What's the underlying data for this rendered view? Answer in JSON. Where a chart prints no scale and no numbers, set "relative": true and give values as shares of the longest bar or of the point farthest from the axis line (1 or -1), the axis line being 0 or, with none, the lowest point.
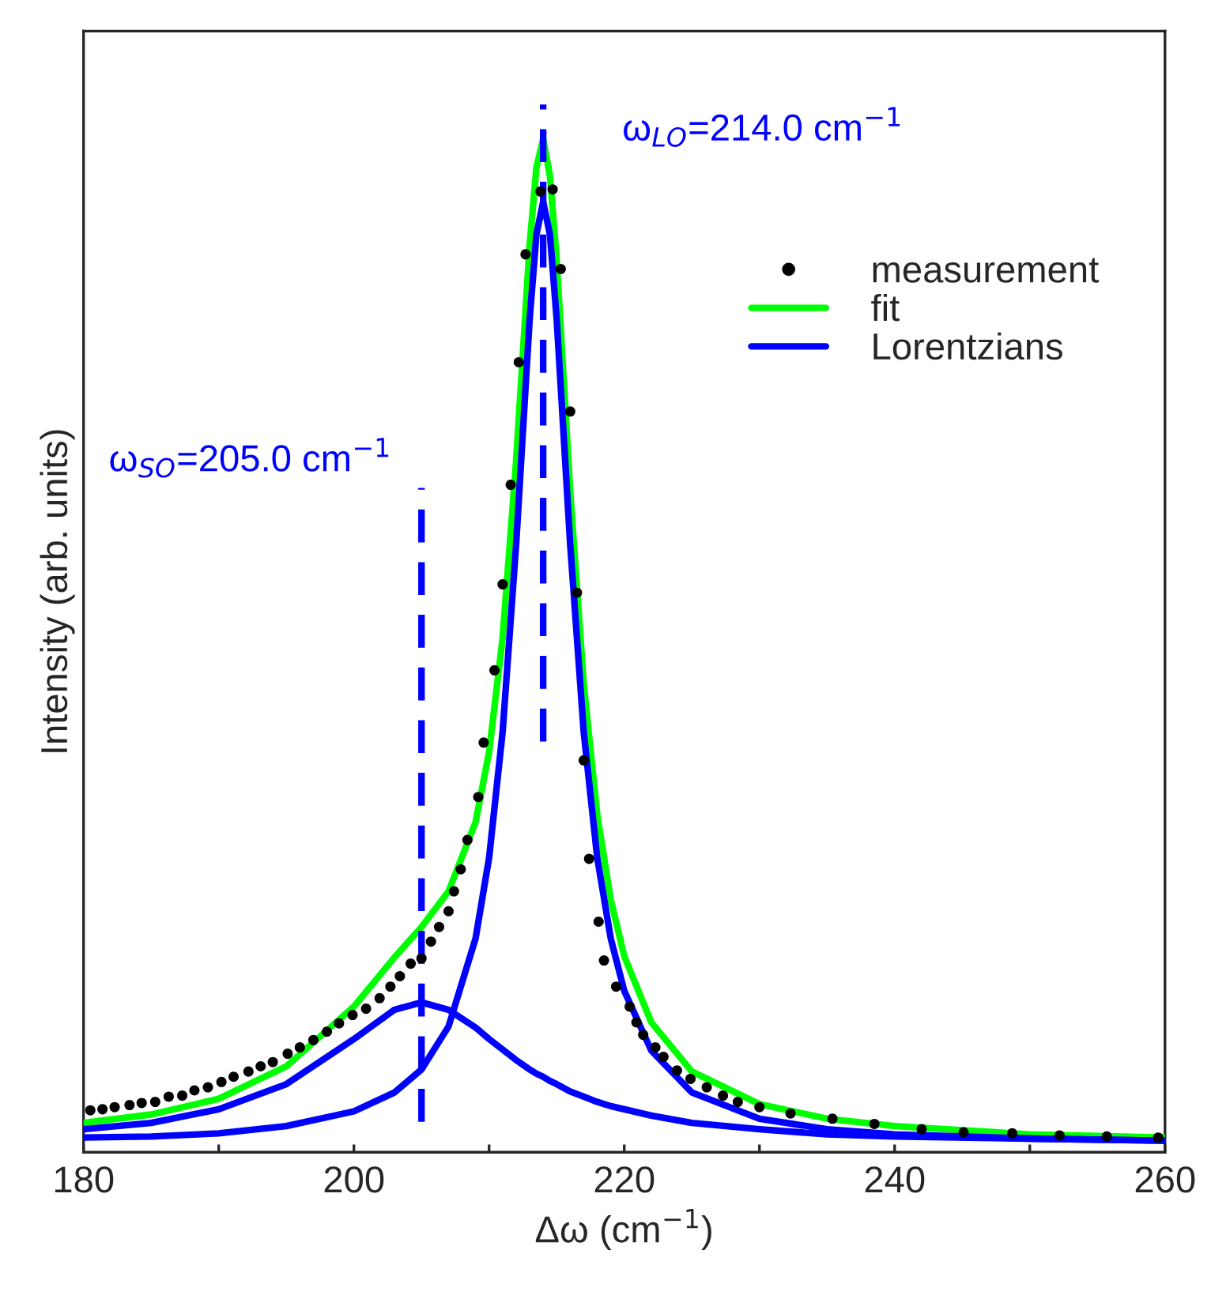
{
  "chart_data": {
    "type": "line",
    "relative": true,
    "xlabel": "Δω (cm$^{−1}$)",
    "ylabel": "Intensity (arb. units)",
    "xlim": [
      180,
      260
    ],
    "xticks": [
      180,
      {
        "value": 190,
        "label": null
      },
      200,
      {
        "value": 210,
        "label": null
      },
      220,
      {
        "value": 230,
        "label": null
      },
      240,
      {
        "value": 250,
        "label": null
      },
      260
    ],
    "legend": "top right",
    "grid": false,
    "series": [
      {
        "name": "measurement",
        "type": "scatter",
        "marker": "circle",
        "color": "#000000",
        "x": [
          180.5,
          181.4,
          182.3,
          183.4,
          184.3,
          185.3,
          186.3,
          187.3,
          188.2,
          189.2,
          190.2,
          191.1,
          192.2,
          193.1,
          194.0,
          195.1,
          196.0,
          197.0,
          198.0,
          198.9,
          199.9,
          200.9,
          201.9,
          202.7,
          203.4,
          204.2,
          205.0,
          205.7,
          206.3,
          207.0,
          207.4,
          207.9,
          208.4,
          209.2,
          209.6,
          210.4,
          211.0,
          211.6,
          212.2,
          212.7,
          213.8,
          214.7,
          215.3,
          216.0,
          216.5,
          217.0,
          217.4,
          218.1,
          218.5,
          219.4,
          220.4,
          220.9,
          221.4,
          222.3,
          222.9,
          223.9,
          224.9,
          226.1,
          227.3,
          228.4,
          230.0,
          232.3,
          235.4,
          238.5,
          242.0,
          245.1,
          248.7,
          252.2,
          255.7,
          259.5
        ],
        "values": [
          0.04,
          0.041,
          0.043,
          0.045,
          0.047,
          0.048,
          0.053,
          0.054,
          0.059,
          0.062,
          0.067,
          0.072,
          0.077,
          0.082,
          0.086,
          0.094,
          0.1,
          0.107,
          0.115,
          0.123,
          0.131,
          0.137,
          0.147,
          0.158,
          0.168,
          0.18,
          0.185,
          0.201,
          0.215,
          0.23,
          0.249,
          0.27,
          0.298,
          0.339,
          0.391,
          0.46,
          0.542,
          0.637,
          0.754,
          0.857,
          0.917,
          0.919,
          0.843,
          0.707,
          0.534,
          0.374,
          0.28,
          0.22,
          0.183,
          0.158,
          0.139,
          0.124,
          0.112,
          0.1,
          0.091,
          0.078,
          0.07,
          0.062,
          0.054,
          0.048,
          0.043,
          0.037,
          0.032,
          0.027,
          0.022,
          0.019,
          0.018,
          0.016,
          0.015,
          0.014
        ]
      },
      {
        "name": "fit",
        "line_style": "solid",
        "color": "#00ff00",
        "x": [
          180,
          185,
          190,
          195,
          200,
          203,
          205,
          207,
          209,
          210,
          211,
          212,
          213,
          213.5,
          214,
          214.5,
          215,
          216,
          217,
          218,
          219,
          220,
          222,
          225,
          230,
          235,
          240,
          250,
          260
        ],
        "values": [
          0.028,
          0.036,
          0.051,
          0.082,
          0.139,
          0.186,
          0.215,
          0.249,
          0.315,
          0.382,
          0.491,
          0.66,
          0.866,
          0.94,
          0.967,
          0.932,
          0.852,
          0.63,
          0.447,
          0.322,
          0.241,
          0.187,
          0.124,
          0.077,
          0.046,
          0.032,
          0.025,
          0.017,
          0.014
        ]
      },
      {
        "name": "Lorentzians",
        "line_style": "solid",
        "color": "#0000ff",
        "x": [
          180,
          185,
          190,
          195,
          200,
          203,
          205,
          207,
          209,
          210,
          211,
          212,
          213,
          213.5,
          214,
          214.5,
          215,
          216,
          217,
          218,
          219,
          220,
          222,
          225,
          230,
          235,
          240,
          250,
          260
        ],
        "values": [
          0.014,
          0.015,
          0.018,
          0.025,
          0.039,
          0.057,
          0.079,
          0.12,
          0.204,
          0.281,
          0.401,
          0.58,
          0.795,
          0.876,
          0.907,
          0.876,
          0.795,
          0.58,
          0.401,
          0.281,
          0.204,
          0.154,
          0.097,
          0.057,
          0.032,
          0.022,
          0.017,
          0.013,
          0.011
        ]
      },
      {
        "line_style": "solid",
        "color": "#0000ff",
        "x": [
          180,
          185,
          190,
          195,
          200,
          203,
          205,
          207,
          209,
          210,
          211,
          212,
          213,
          213.5,
          214,
          214.5,
          215,
          216,
          217,
          218,
          219,
          220,
          222,
          225,
          230,
          235,
          240,
          250,
          260
        ],
        "values": [
          0.022,
          0.028,
          0.041,
          0.065,
          0.108,
          0.136,
          0.143,
          0.136,
          0.119,
          0.108,
          0.098,
          0.088,
          0.079,
          0.075,
          0.072,
          0.068,
          0.065,
          0.058,
          0.053,
          0.048,
          0.044,
          0.041,
          0.035,
          0.028,
          0.022,
          0.017,
          0.015,
          0.013,
          0.011
        ]
      },
      {
        "line_style": "dashed",
        "color": "#0000ff",
        "x": [
          205,
          205
        ],
        "values": [
          0.029,
          0.634
        ]
      },
      {
        "line_style": "dashed",
        "color": "#0000ff",
        "x": [
          214,
          214
        ],
        "values": [
          0.392,
          1.0
        ]
      }
    ],
    "annotations": [
      {
        "text": "ω$_{SO}$=205.0 cm$^{−1}$",
        "x": 205,
        "y": 0.634
      },
      {
        "text": "ω$_{LO}$=214.0 cm$^{−1}$",
        "x": 214,
        "y": 1.0
      }
    ]
  }
}
